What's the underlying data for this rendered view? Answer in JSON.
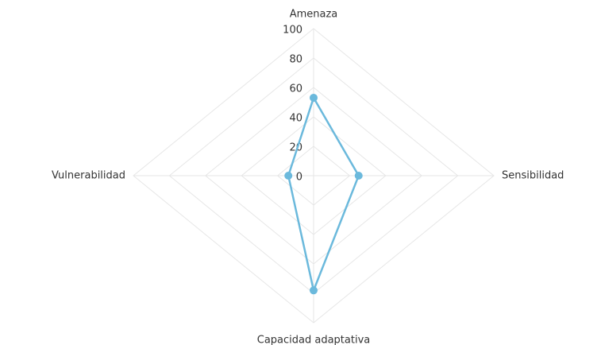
{
  "chart_data": {
    "type": "radar",
    "categories": [
      "Amenaza",
      "Sensibilidad",
      "Capacidad adaptativa",
      "Vulnerabilidad"
    ],
    "series": [
      {
        "color": "#6bb9dc",
        "values": [
          53,
          25,
          78,
          14
        ]
      }
    ],
    "ylim": [
      0,
      100
    ],
    "yticks": [
      0,
      20,
      40,
      60,
      80,
      100
    ],
    "grid": true
  }
}
